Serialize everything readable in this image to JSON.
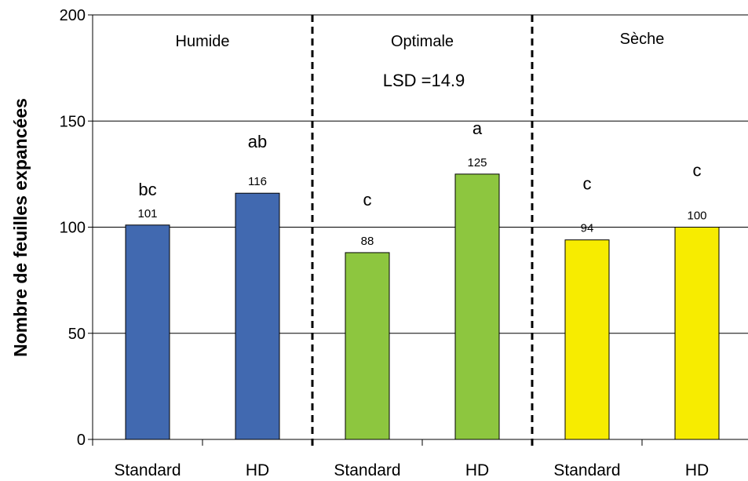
{
  "chart_data": {
    "type": "bar",
    "title": "",
    "ylabel": "Nombre de feuilles expancées",
    "xlabel": "",
    "ylim": [
      0,
      200
    ],
    "yticks": [
      0,
      50,
      100,
      150,
      200
    ],
    "grid": true,
    "lsd_text": "LSD =14.9",
    "groups": [
      {
        "name": "Humide",
        "color": "#4169b0",
        "bars": [
          {
            "category": "Standard",
            "value": 101,
            "value_label": "101",
            "letter": "bc"
          },
          {
            "category": "HD",
            "value": 116,
            "value_label": "116",
            "letter": "ab"
          }
        ]
      },
      {
        "name": "Optimale",
        "color": "#8dc63f",
        "bars": [
          {
            "category": "Standard",
            "value": 88,
            "value_label": "88",
            "letter": "c"
          },
          {
            "category": "HD",
            "value": 125,
            "value_label": "125",
            "letter": "a"
          }
        ]
      },
      {
        "name": "Sèche",
        "color": "#f7ec00",
        "bars": [
          {
            "category": "Standard",
            "value": 94,
            "value_label": "94",
            "letter": "c"
          },
          {
            "category": "HD",
            "value": 100,
            "value_label": "100",
            "letter": "c"
          }
        ]
      }
    ]
  }
}
